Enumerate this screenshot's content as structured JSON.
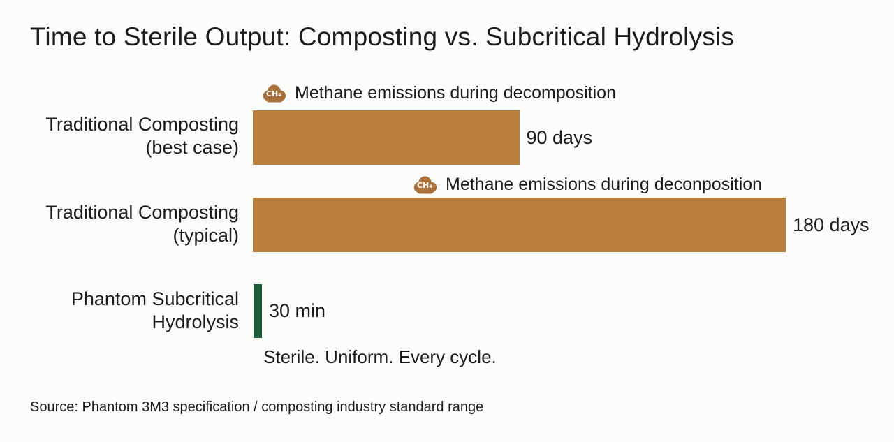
{
  "title": "Time to Sterile Output: Composting vs. Subcritical Hydrolysis",
  "tagline": "Sterile. Uniform. Every cycle.",
  "source": "Source: Phantom 3M3 specification / composting industry standard range",
  "colors": {
    "background": "#fcfcfa",
    "text": "#1c1c1c",
    "bar_brown": "#bb7f3d",
    "icon_brown": "#a8703a",
    "bar_green": "#1d5b38"
  },
  "chart_data": {
    "type": "bar",
    "orientation": "horizontal",
    "title": "Time to Sterile Output: Composting vs. Subcritical Hydrolysis",
    "grid": false,
    "legend": false,
    "axis_visible": false,
    "x_max_days": 180,
    "rows": [
      {
        "category": "Traditional Composting (best case)",
        "category_lines": [
          "Traditional Composting",
          "(best case)"
        ],
        "value": 90,
        "unit": "days",
        "value_days": 90,
        "value_label": "90 days",
        "bar_color": "#bb7f3d",
        "annotation": {
          "icon": "ch4-cloud-icon",
          "icon_text": "CH₄",
          "text": "Methane emissions during decomposition"
        }
      },
      {
        "category": "Traditional Composting (typical)",
        "category_lines": [
          "Traditional Composting",
          "(typical)"
        ],
        "value": 180,
        "unit": "days",
        "value_days": 180,
        "value_label": "180 days",
        "bar_color": "#bb7f3d",
        "annotation": {
          "icon": "ch4-cloud-icon",
          "icon_text": "CH₄",
          "text": "Methane emissions during deconposition"
        }
      },
      {
        "category": "Phantom Subcritical Hydrolysis",
        "category_lines": [
          "Phantom Subcritical",
          "Hydrolysis"
        ],
        "value": 30,
        "unit": "min",
        "value_days": 0.0208,
        "value_label": "30 min",
        "bar_color": "#1d5b38",
        "annotation": null
      }
    ]
  }
}
